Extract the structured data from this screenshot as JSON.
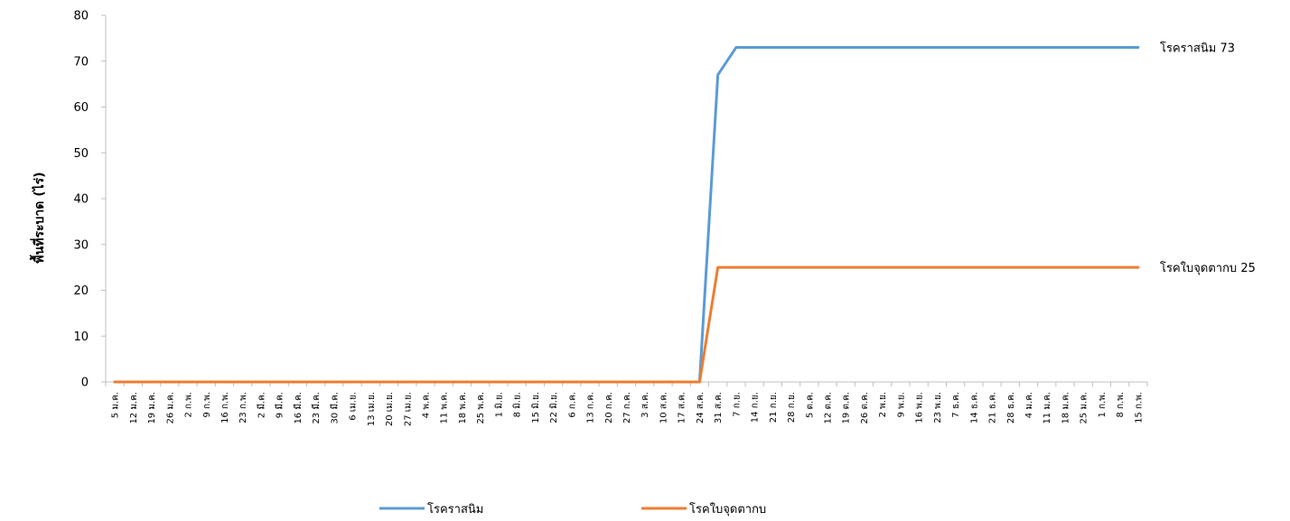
{
  "chart_data": {
    "type": "line",
    "title": "",
    "xlabel": "",
    "ylabel": "พื้นที่ระบาด (ไร่)",
    "ylim": [
      0,
      80
    ],
    "yticks": [
      0,
      10,
      20,
      30,
      40,
      50,
      60,
      70,
      80
    ],
    "grid": false,
    "legend_position": "bottom",
    "categories": [
      "5 ม.ค.",
      "12 ม.ค.",
      "19 ม.ค.",
      "26 ม.ค.",
      "2 ก.พ.",
      "9 ก.พ.",
      "16 ก.พ.",
      "23 ก.พ.",
      "2 มี.ค.",
      "9 มี.ค.",
      "16 มี.ค.",
      "23 มี.ค.",
      "30 มี.ค.",
      "6 เม.ย.",
      "13 เม.ย.",
      "20 เม.ย.",
      "27 เม.ย.",
      "4 พ.ค.",
      "11 พ.ค.",
      "18 พ.ค.",
      "25 พ.ค.",
      "1 มิ.ย.",
      "8 มิ.ย.",
      "15 มิ.ย.",
      "22 มิ.ย.",
      "6 ก.ค.",
      "13 ก.ค.",
      "20 ก.ค.",
      "27 ก.ค.",
      "3 ส.ค.",
      "10 ส.ค.",
      "17 ส.ค.",
      "24 ส.ค.",
      "31 ส.ค.",
      "7 ก.ย.",
      "14 ก.ย.",
      "21 ก.ย.",
      "28 ก.ย.",
      "5 ต.ค.",
      "12 ต.ค.",
      "19 ต.ค.",
      "26 ต.ค.",
      "2 พ.ย.",
      "9 พ.ย.",
      "16 พ.ย.",
      "23 พ.ย.",
      "7 ธ.ค.",
      "14 ธ.ค.",
      "21 ธ.ค.",
      "28 ธ.ค.",
      "4 ม.ค.",
      "11 ม.ค.",
      "18 ม.ค.",
      "25 ม.ค.",
      "1 ก.พ.",
      "8 ก.พ.",
      "15 ก.พ."
    ],
    "series": [
      {
        "name": "โรคราสนิม",
        "color": "#5b9bd5",
        "end_label": "โรคราสนิม 73",
        "values": [
          0,
          0,
          0,
          0,
          0,
          0,
          0,
          0,
          0,
          0,
          0,
          0,
          0,
          0,
          0,
          0,
          0,
          0,
          0,
          0,
          0,
          0,
          0,
          0,
          0,
          0,
          0,
          0,
          0,
          0,
          0,
          0,
          0,
          67,
          73,
          73,
          73,
          73,
          73,
          73,
          73,
          73,
          73,
          73,
          73,
          73,
          73,
          73,
          73,
          73,
          73,
          73,
          73,
          73,
          73,
          73,
          73
        ]
      },
      {
        "name": "โรคใบจุดตากบ",
        "color": "#ed7d31",
        "end_label": "โรคใบจุดตากบ 25",
        "values": [
          0,
          0,
          0,
          0,
          0,
          0,
          0,
          0,
          0,
          0,
          0,
          0,
          0,
          0,
          0,
          0,
          0,
          0,
          0,
          0,
          0,
          0,
          0,
          0,
          0,
          0,
          0,
          0,
          0,
          0,
          0,
          0,
          0,
          25,
          25,
          25,
          25,
          25,
          25,
          25,
          25,
          25,
          25,
          25,
          25,
          25,
          25,
          25,
          25,
          25,
          25,
          25,
          25,
          25,
          25,
          25,
          25
        ]
      }
    ]
  }
}
